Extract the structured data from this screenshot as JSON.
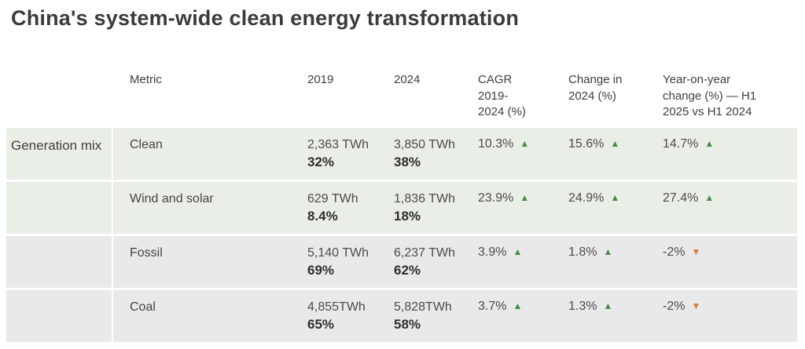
{
  "title": "China's system-wide clean energy transformation",
  "icons": {
    "trend_up": "▲",
    "trend_down": "▼"
  },
  "colors": {
    "trend_up": "#468c44",
    "trend_down": "#d9783e",
    "row_tint_green": "#e9eee7",
    "row_tint_gray": "#e9e9eb",
    "title_text": "#3b3b3b",
    "body_text": "#4c4c4c",
    "bold_text": "#2e2e2e"
  },
  "chart_data": {
    "type": "table",
    "title": "China's system-wide clean energy transformation",
    "headers": {
      "group": "",
      "metric": "Metric",
      "y2019": "2019",
      "y2024": "2024",
      "cagr": "CAGR\n2019-\n2024 (%)",
      "change_2024": "Change in\n2024 (%)",
      "yoy": "Year-on-year\nchange (%) — H1\n2025 vs H1 2024"
    },
    "rows": [
      {
        "group": "Generation mix",
        "metric": "Clean",
        "tint": "green",
        "y2019": {
          "value": "2,363 TWh",
          "share": "32%"
        },
        "y2024": {
          "value": "3,850 TWh",
          "share": "38%"
        },
        "cagr": {
          "value": "10.3%",
          "trend": "up"
        },
        "change_2024": {
          "value": "15.6%",
          "trend": "up"
        },
        "yoy": {
          "value": "14.7%",
          "trend": "up"
        }
      },
      {
        "group": "",
        "metric": "Wind and solar",
        "tint": "green",
        "y2019": {
          "value": "629 TWh",
          "share": "8.4%"
        },
        "y2024": {
          "value": "1,836 TWh",
          "share": "18%"
        },
        "cagr": {
          "value": "23.9%",
          "trend": "up"
        },
        "change_2024": {
          "value": "24.9%",
          "trend": "up"
        },
        "yoy": {
          "value": "27.4%",
          "trend": "up"
        }
      },
      {
        "group": "",
        "metric": "Fossil",
        "tint": "gray",
        "y2019": {
          "value": "5,140 TWh",
          "share": "69%"
        },
        "y2024": {
          "value": "6,237 TWh",
          "share": "62%"
        },
        "cagr": {
          "value": "3.9%",
          "trend": "up"
        },
        "change_2024": {
          "value": "1.8%",
          "trend": "up"
        },
        "yoy": {
          "value": "-2%",
          "trend": "down"
        }
      },
      {
        "group": "",
        "metric": "Coal",
        "tint": "gray",
        "y2019": {
          "value": "4,855TWh",
          "share": "65%"
        },
        "y2024": {
          "value": "5,828TWh",
          "share": "58%"
        },
        "cagr": {
          "value": "3.7%",
          "trend": "up"
        },
        "change_2024": {
          "value": "1.3%",
          "trend": "up"
        },
        "yoy": {
          "value": "-2%",
          "trend": "down"
        }
      }
    ]
  }
}
